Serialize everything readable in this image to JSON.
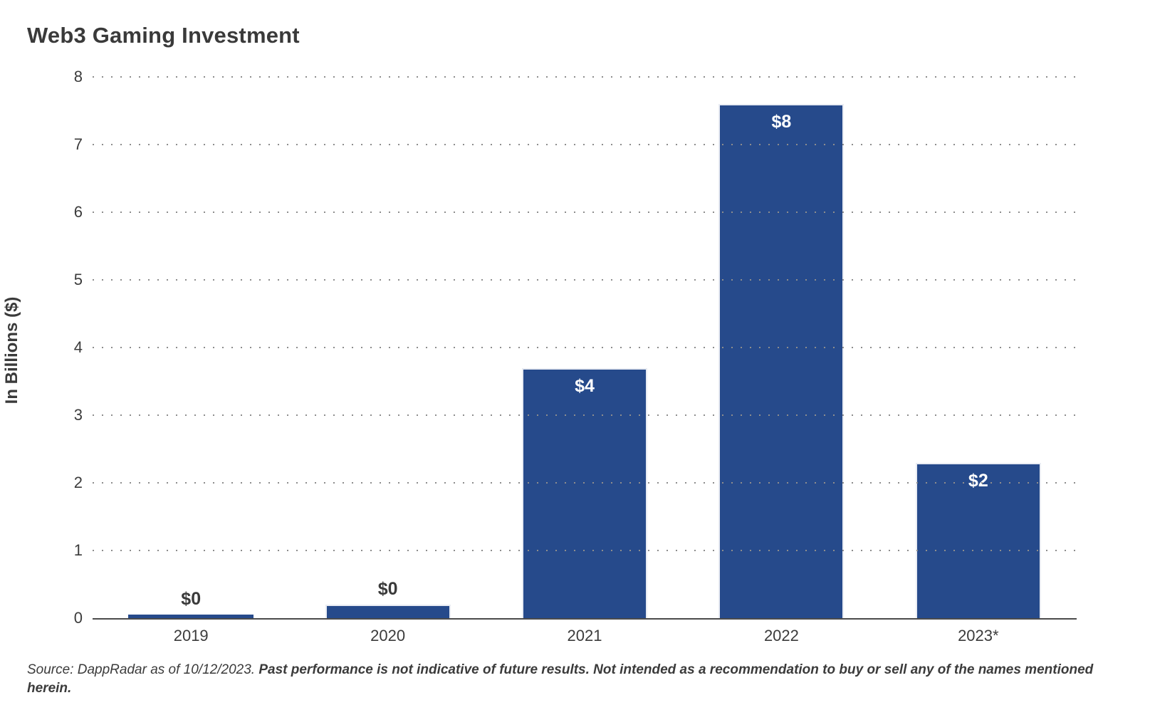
{
  "chart_data": {
    "type": "bar",
    "title": "Web3 Gaming Investment",
    "xlabel": "",
    "ylabel": "In Billions ($)",
    "categories": [
      "2019",
      "2020",
      "2021",
      "2022",
      "2023*"
    ],
    "values": [
      0.05,
      0.2,
      3.7,
      7.6,
      2.3
    ],
    "bar_labels": [
      "$0",
      "$0",
      "$4",
      "$8",
      "$2"
    ],
    "ylim": [
      0,
      8
    ],
    "yticks": [
      0,
      1,
      2,
      3,
      4,
      5,
      6,
      7,
      8
    ],
    "grid": "dotted-horizontal",
    "legend": "none",
    "bar_color": "#264a8b",
    "bar_edge_color": "#e9ecf3",
    "label_inside_color": "#ffffff",
    "label_above_color": "#3a3a3a",
    "axis_line_color": "#4b4b4b",
    "gridline_color": "#8d8d8d",
    "text_color": "#3b3b3b"
  },
  "footer": {
    "source_normal": "Source: DappRadar as of 10/12/2023. ",
    "source_bold": "Past performance is not indicative of future results. Not intended as a recommendation to buy or sell any of the names mentioned herein."
  }
}
